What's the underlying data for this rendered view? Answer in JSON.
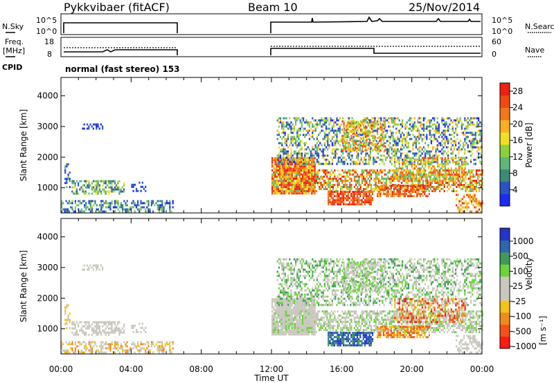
{
  "header": {
    "station": "Pykkvibaer (fitACF)",
    "beam": "Beam 10",
    "date": "25/Nov/2014"
  },
  "strip_panels": {
    "nsky_label": "N.Sky",
    "nsky_ticks": [
      "10^5",
      "10^0"
    ],
    "nsearch_label": "N.Search",
    "nsearch_ticks": [
      "10^5",
      "10^0"
    ],
    "freq_label_1": "Freq.",
    "freq_label_2": "[MHz]",
    "freq_ticks": [
      "18",
      "8"
    ],
    "nave_label": "Nave",
    "nave_ticks": [
      "60",
      "0"
    ],
    "cpid_label": "CPID",
    "cpid_text": "normal (fast stereo) 153"
  },
  "colors": {
    "power_scale": [
      "#1a2cf0",
      "#2a55c6",
      "#3c8a78",
      "#5fb87a",
      "#8cd13c",
      "#f0e020",
      "#f8b020",
      "#f07818",
      "#f04a12",
      "#ee2010"
    ],
    "velocity_scale": [
      "#ff1a10",
      "#f55018",
      "#f08a1a",
      "#f2c418",
      "#c9c7be",
      "#c9c7be",
      "#6ad43a",
      "#3f9a5a",
      "#2e66b0",
      "#2436c8"
    ],
    "gray": "#c9c7be"
  },
  "chart_data": [
    {
      "type": "heatmap",
      "panel": "power",
      "ylabel": "Slant Range [km]",
      "xlabel": "Time UT",
      "x_tick_labels": [
        "00:00",
        "04:00",
        "08:00",
        "12:00",
        "16:00",
        "20:00",
        "00:00"
      ],
      "x_range_hours": [
        0,
        24
      ],
      "y_tick_labels": [
        "1000",
        "2000",
        "3000",
        "4000"
      ],
      "ylim_km": [
        180,
        4600
      ],
      "colorbar_label": "Power [dB]",
      "colorbar_ticks": [
        "4",
        "8",
        "12",
        "16",
        "20",
        "24",
        "28"
      ],
      "colorbar_range": [
        0,
        30
      ]
    },
    {
      "type": "heatmap",
      "panel": "velocity",
      "ylabel": "Slant Range [km]",
      "xlabel": "Time UT",
      "x_tick_labels": [
        "00:00",
        "04:00",
        "08:00",
        "12:00",
        "16:00",
        "20:00",
        "00:00"
      ],
      "x_range_hours": [
        0,
        24
      ],
      "y_tick_labels": [
        "1000",
        "2000",
        "3000",
        "4000"
      ],
      "ylim_km": [
        180,
        4600
      ],
      "colorbar_label": "Velocity",
      "colorbar_unit": "[m s⁻¹]",
      "colorbar_ticks": [
        "1000",
        "500",
        "100",
        "25",
        "-25",
        "-100",
        "-500",
        "-1000"
      ]
    }
  ],
  "axis_title": "Time UT"
}
